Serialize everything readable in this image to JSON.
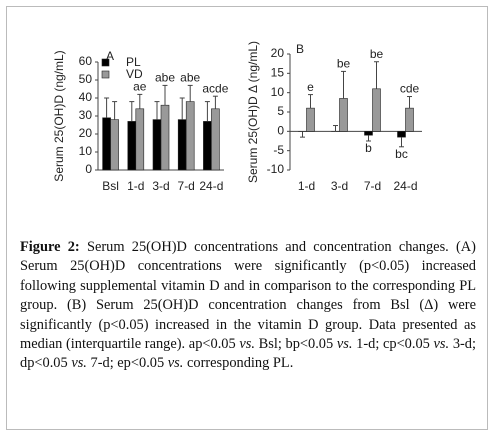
{
  "chart_data": [
    {
      "type": "bar",
      "title": "A",
      "y_label": "Serum 25(OH)D (ng/mL)",
      "categories": [
        "Bsl",
        "1-d",
        "3-d",
        "7-d",
        "24-d"
      ],
      "series": [
        {
          "name": "PL",
          "color": "#000000",
          "values": [
            29,
            27,
            28,
            28,
            27
          ],
          "whisker": [
            40,
            38,
            38,
            40,
            38
          ],
          "annotations": [
            null,
            null,
            null,
            null,
            null
          ]
        },
        {
          "name": "VD",
          "color": "#999999",
          "values": [
            28,
            34,
            36,
            38,
            34
          ],
          "whisker": [
            38,
            42,
            47,
            47,
            41
          ],
          "annotations": [
            null,
            "ae",
            "abe",
            "abe",
            "acde"
          ]
        }
      ],
      "ylim": [
        0,
        60
      ],
      "yticks": [
        0,
        10,
        20,
        30,
        40,
        50,
        60
      ],
      "legend": true
    },
    {
      "type": "bar",
      "title": "B",
      "y_label": "Serum 25(OH)D Δ (ng/mL)",
      "categories": [
        "1-d",
        "3-d",
        "7-d",
        "24-d"
      ],
      "series": [
        {
          "color": "#000000",
          "values": [
            0,
            0,
            -1,
            -1.5
          ],
          "whisker": [
            -1.5,
            1.5,
            -2.5,
            -4
          ],
          "annotations": [
            null,
            null,
            "b",
            "bc"
          ]
        },
        {
          "color": "#999999",
          "values": [
            6,
            8.5,
            11,
            6
          ],
          "whisker": [
            9.5,
            15.5,
            18,
            9
          ],
          "annotations": [
            "e",
            "be",
            "be",
            "cde"
          ]
        }
      ],
      "ylim": [
        -10,
        20
      ],
      "yticks": [
        -10,
        -5,
        0,
        5,
        10,
        15,
        20
      ],
      "legend": false
    }
  ],
  "caption": {
    "label": "Figure 2:",
    "runs": [
      "Serum 25(OH)D concentrations and concentration changes. (A) Serum 25(OH)D concentrations were significantly (p<0.05) increased following supplemental vitamin D and in comparison to the corresponding PL group. (B) Serum 25(OH)D concentration changes from Bsl (Δ) were significantly (p<0.05) increased in the vitamin D group. Data presented as median (interquartile range). ap<0.05",
      "vs.",
      "Bsl; bp<0.05",
      "vs.",
      "1-d; cp<0.05",
      "vs.",
      "3-d; dp<0.05",
      "vs.",
      "7-d; ep<0.05",
      "vs.",
      "corresponding PL."
    ]
  }
}
